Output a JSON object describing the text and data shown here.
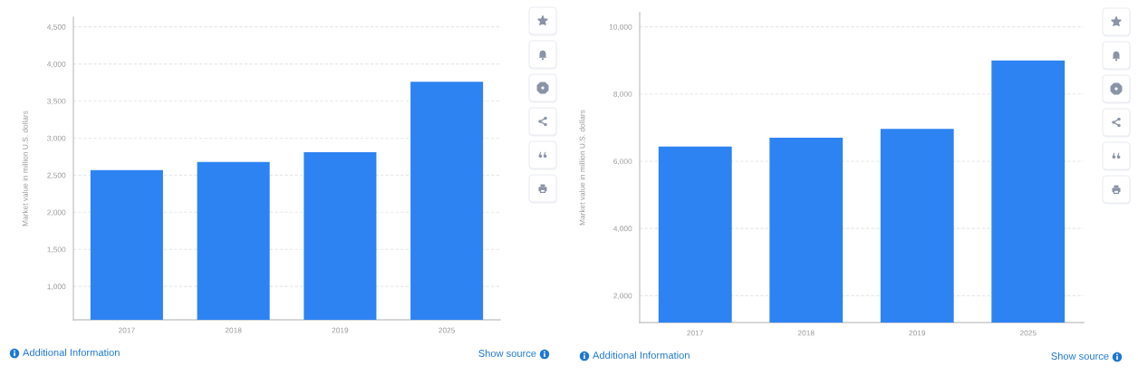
{
  "chart_data": [
    {
      "type": "bar",
      "categories": [
        "2017",
        "2018",
        "2019",
        "2025"
      ],
      "values": [
        2570,
        2680,
        2810,
        3760
      ],
      "color": "#2e83f2",
      "ylabel": "Market value in million U.S. dollars",
      "ylim": [
        550,
        4630
      ],
      "yticks": [
        {
          "value": 1000,
          "label": "1,000"
        },
        {
          "value": 1500,
          "label": "1,500"
        },
        {
          "value": 2000,
          "label": "2,000"
        },
        {
          "value": 2500,
          "label": "2,500"
        },
        {
          "value": 3000,
          "label": "3,000"
        },
        {
          "value": 3500,
          "label": "3,500"
        },
        {
          "value": 4000,
          "label": "4,000"
        },
        {
          "value": 4500,
          "label": "4,500"
        }
      ],
      "grid": "y",
      "annotations": [
        "Additional Information",
        "Show source"
      ]
    },
    {
      "type": "bar",
      "categories": [
        "2017",
        "2018",
        "2019",
        "2025"
      ],
      "values": [
        6440,
        6700,
        6960,
        9000
      ],
      "color": "#2e83f2",
      "ylabel": "Market value in million U.S. dollars",
      "ylim": [
        1200,
        10420
      ],
      "yticks": [
        {
          "value": 2000,
          "label": "2,000"
        },
        {
          "value": 4000,
          "label": "4,000"
        },
        {
          "value": 6000,
          "label": "6,000"
        },
        {
          "value": 8000,
          "label": "8,000"
        },
        {
          "value": 10000,
          "label": "10,000"
        }
      ],
      "grid": "y",
      "annotations": [
        "Additional Information",
        "Show source"
      ]
    }
  ]
}
